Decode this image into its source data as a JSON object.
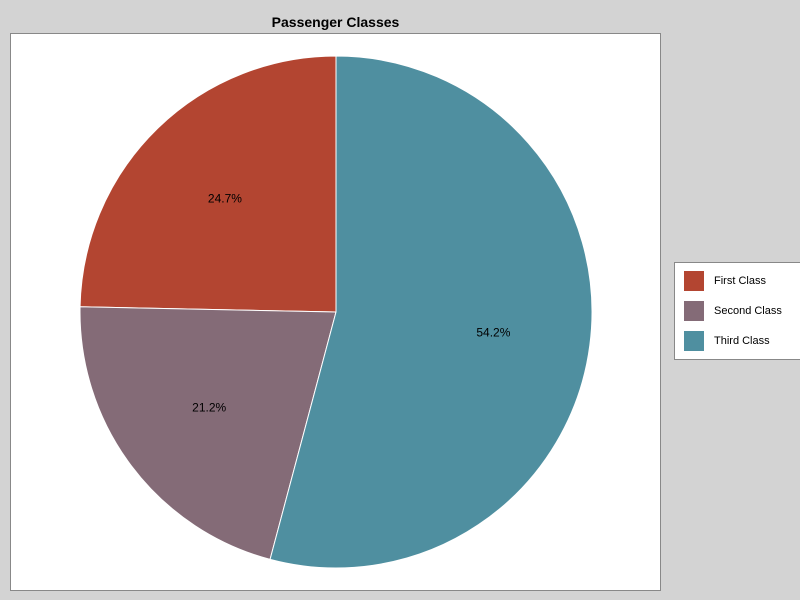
{
  "chart_data": {
    "type": "pie",
    "title": "Passenger Classes",
    "slices": [
      {
        "label": "First Class",
        "value": 24.7,
        "display": "24.7%",
        "color": "#b34531"
      },
      {
        "label": "Second Class",
        "value": 21.2,
        "display": "21.2%",
        "color": "#846b77"
      },
      {
        "label": "Third Class",
        "value": 54.2,
        "display": "54.2%",
        "color": "#4f8fa0"
      }
    ],
    "start": "12 o'clock",
    "direction": "counterclockwise",
    "legend": {
      "placement": "right"
    }
  }
}
